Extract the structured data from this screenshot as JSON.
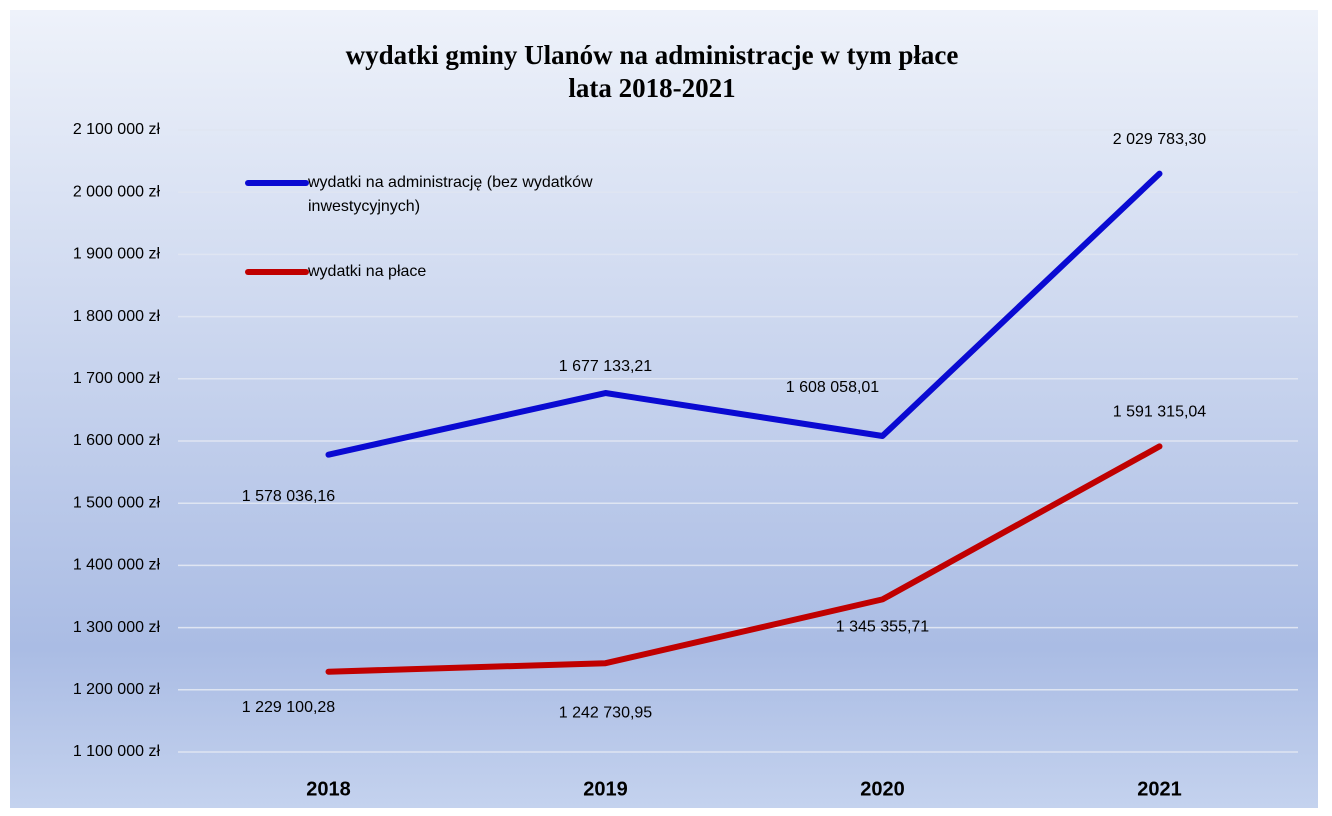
{
  "chart_data": {
    "type": "line",
    "title": "wydatki gminy Ulanów na administracje w tym płace",
    "subtitle": "lata 2018-2021",
    "categories": [
      "2018",
      "2019",
      "2020",
      "2021"
    ],
    "series": [
      {
        "name": "wydatki na administrację (bez wydatków inwestycyjnych)",
        "color": "#0a0ad2",
        "values": [
          1578036.16,
          1677133.21,
          1608058.01,
          2029783.3
        ],
        "value_labels": [
          "1 578 036,16",
          "1 677 133,21",
          "1 608 058,01",
          "2 029 783,30"
        ]
      },
      {
        "name": "wydatki na płace",
        "color": "#c00000",
        "values": [
          1229100.28,
          1242730.95,
          1345355.71,
          1591315.04
        ],
        "value_labels": [
          "1 229 100,28",
          "1 242 730,95",
          "1 345 355,71",
          "1 591 315,04"
        ]
      }
    ],
    "ylim": [
      1100000,
      2100000
    ],
    "yticks": [
      {
        "value": 1100000,
        "label": "1 100 000 zł"
      },
      {
        "value": 1200000,
        "label": "1 200 000 zł"
      },
      {
        "value": 1300000,
        "label": "1 300 000 zł"
      },
      {
        "value": 1400000,
        "label": "1 400 000 zł"
      },
      {
        "value": 1500000,
        "label": "1 500 000 zł"
      },
      {
        "value": 1600000,
        "label": "1 600 000 zł"
      },
      {
        "value": 1700000,
        "label": "1 700 000 zł"
      },
      {
        "value": 1800000,
        "label": "1 800 000 zł"
      },
      {
        "value": 1900000,
        "label": "1 900 000 zł"
      },
      {
        "value": 2000000,
        "label": "2 000 000 zł"
      },
      {
        "value": 2100000,
        "label": "2 100 000 zł"
      }
    ],
    "grid": true
  }
}
